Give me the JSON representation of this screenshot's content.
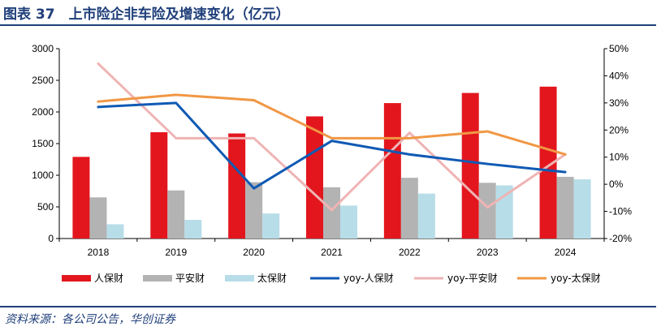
{
  "header": {
    "title": "图表 37　上市险企非车险及增速变化（亿元）"
  },
  "footer": {
    "source": "资料来源：各公司公告，华创证券"
  },
  "colors": {
    "rule": "#1f3f7a",
    "renbao_bar": "#e3161e",
    "pingan_bar": "#b3b3b3",
    "taibao_bar": "#b7dde8",
    "yoy_renbao": "#0f5ab4",
    "yoy_pingan": "#efb4b4",
    "yoy_taibao": "#f19744"
  },
  "chart_data": {
    "type": "bar+line",
    "title": "",
    "categories": [
      "2018",
      "2019",
      "2020",
      "2021",
      "2022",
      "2023",
      "2024"
    ],
    "y_left": {
      "ylim": [
        0,
        3000
      ],
      "ticks": [
        "0",
        "500",
        "1000",
        "1500",
        "2000",
        "2500",
        "3000"
      ]
    },
    "y_right": {
      "ylim": [
        -20,
        50
      ],
      "ticks": [
        "-20%",
        "-10%",
        "0%",
        "10%",
        "20%",
        "30%",
        "40%",
        "50%"
      ]
    },
    "series": [
      {
        "name": "人保财",
        "type": "bar",
        "axis": "left",
        "color": "#e3161e",
        "values": [
          1290,
          1680,
          1660,
          1930,
          2140,
          2300,
          2400
        ]
      },
      {
        "name": "平安财",
        "type": "bar",
        "axis": "left",
        "color": "#b3b3b3",
        "values": [
          650,
          760,
          890,
          810,
          960,
          880,
          975
        ]
      },
      {
        "name": "太保财",
        "type": "bar",
        "axis": "left",
        "color": "#b7dde8",
        "values": [
          225,
          295,
          395,
          520,
          710,
          840,
          935
        ]
      },
      {
        "name": "yoy-人保财",
        "type": "line",
        "axis": "right",
        "color": "#0f5ab4",
        "values": [
          28.5,
          30,
          -1.5,
          16,
          11,
          7.5,
          4.5
        ]
      },
      {
        "name": "yoy-平安财",
        "type": "line",
        "axis": "right",
        "color": "#efb4b4",
        "values": [
          44.5,
          17,
          17,
          -9.5,
          19,
          -8.5,
          11
        ]
      },
      {
        "name": "yoy-太保财",
        "type": "line",
        "axis": "right",
        "color": "#f19744",
        "values": [
          30.5,
          33,
          31,
          17,
          17,
          19.5,
          11
        ]
      }
    ],
    "grid": false,
    "legend_position": "bottom"
  }
}
